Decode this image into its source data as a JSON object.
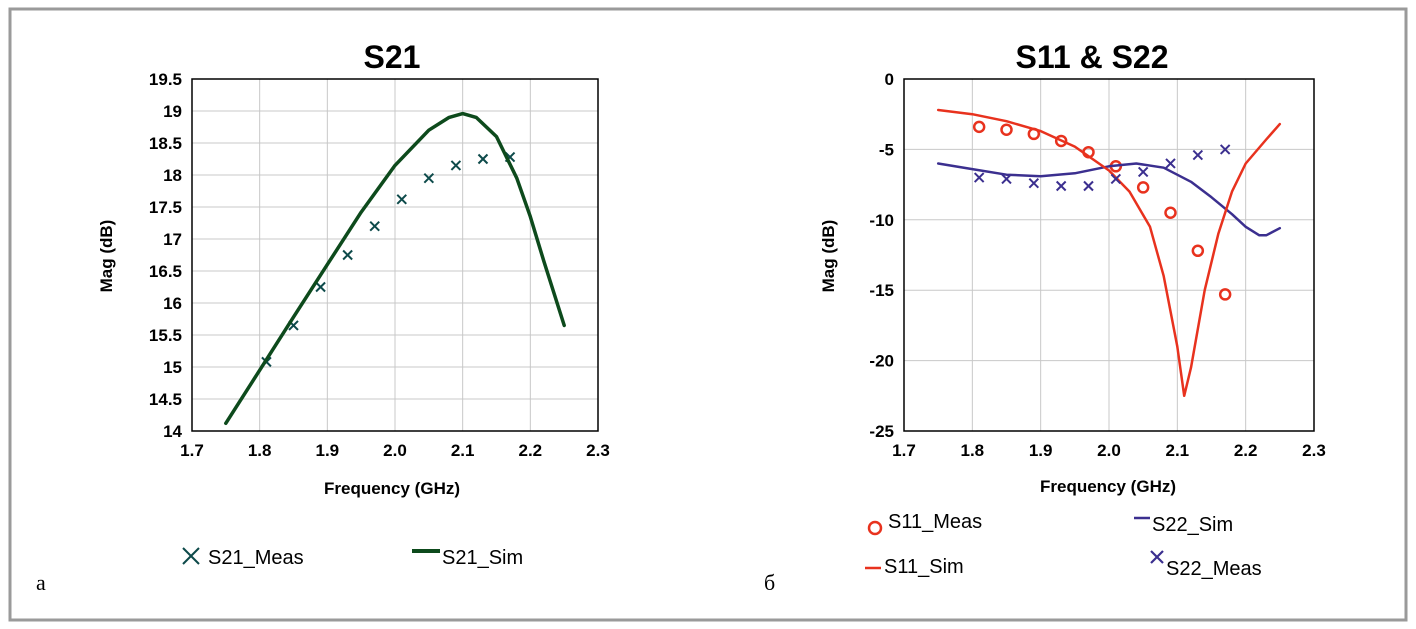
{
  "colors": {
    "border": "#9a9a9a",
    "grid": "#c8c8c8",
    "s21": "#0d4a1c",
    "s21_meas": "#0d4a4a",
    "s11": "#e8321e",
    "s22": "#3b2f8f"
  },
  "chart_data": [
    {
      "type": "line",
      "panel_label": "а",
      "title": "S21",
      "xlabel": "Frequency (GHz)",
      "ylabel": "Mag (dB)",
      "xlim": [
        1.7,
        2.3
      ],
      "ylim": [
        14,
        19.5
      ],
      "xticks": [
        "1.7",
        "1.8",
        "1.9",
        "2.0",
        "2.1",
        "2.2",
        "2.3"
      ],
      "yticks": [
        "14",
        "14.5",
        "15",
        "15.5",
        "16",
        "16.5",
        "17",
        "17.5",
        "18",
        "18.5",
        "19",
        "19.5"
      ],
      "grid": true,
      "legend_position": "bottom",
      "series": [
        {
          "name": "S21_Meas",
          "kind": "marker-x",
          "x": [
            1.81,
            1.85,
            1.89,
            1.93,
            1.97,
            2.01,
            2.05,
            2.09,
            2.13,
            2.17
          ],
          "y": [
            15.08,
            15.65,
            16.25,
            16.75,
            17.2,
            17.62,
            17.95,
            18.15,
            18.25,
            18.28
          ]
        },
        {
          "name": "S21_Sim",
          "kind": "line",
          "x": [
            1.75,
            1.8,
            1.85,
            1.9,
            1.95,
            2.0,
            2.05,
            2.08,
            2.1,
            2.12,
            2.15,
            2.18,
            2.2,
            2.22,
            2.25
          ],
          "y": [
            14.12,
            14.95,
            15.78,
            16.6,
            17.42,
            18.15,
            18.7,
            18.9,
            18.96,
            18.9,
            18.6,
            17.95,
            17.35,
            16.65,
            15.65
          ]
        }
      ]
    },
    {
      "type": "line",
      "panel_label": "б",
      "title": "S11 & S22",
      "xlabel": "Frequency (GHz)",
      "ylabel": "Mag (dB)",
      "xlim": [
        1.7,
        2.3
      ],
      "ylim": [
        -25,
        0
      ],
      "xticks": [
        "1.7",
        "1.8",
        "1.9",
        "2.0",
        "2.1",
        "2.2",
        "2.3"
      ],
      "yticks": [
        "-25",
        "-20",
        "-15",
        "-10",
        "-5",
        "0"
      ],
      "grid": true,
      "legend_position": "bottom",
      "series": [
        {
          "name": "S11_Meas",
          "kind": "marker-o",
          "x": [
            1.81,
            1.85,
            1.89,
            1.93,
            1.97,
            2.01,
            2.05,
            2.09,
            2.13,
            2.17
          ],
          "y": [
            -3.4,
            -3.6,
            -3.9,
            -4.4,
            -5.2,
            -6.2,
            -7.7,
            -9.5,
            -12.2,
            -15.3
          ]
        },
        {
          "name": "S22_Sim",
          "kind": "line",
          "x": [
            1.75,
            1.8,
            1.85,
            1.9,
            1.95,
            2.0,
            2.04,
            2.08,
            2.12,
            2.15,
            2.18,
            2.2,
            2.22,
            2.23,
            2.25
          ],
          "y": [
            -6.0,
            -6.4,
            -6.8,
            -6.9,
            -6.7,
            -6.2,
            -6.0,
            -6.3,
            -7.3,
            -8.4,
            -9.6,
            -10.5,
            -11.1,
            -11.1,
            -10.6
          ]
        },
        {
          "name": "S11_Sim",
          "kind": "line",
          "x": [
            1.75,
            1.8,
            1.85,
            1.9,
            1.95,
            2.0,
            2.03,
            2.06,
            2.08,
            2.1,
            2.11,
            2.12,
            2.14,
            2.16,
            2.18,
            2.2,
            2.23,
            2.25
          ],
          "y": [
            -2.2,
            -2.5,
            -3.0,
            -3.7,
            -4.8,
            -6.5,
            -8.0,
            -10.5,
            -14.0,
            -19.0,
            -22.5,
            -20.5,
            -15.0,
            -11.0,
            -8.0,
            -6.0,
            -4.3,
            -3.2
          ]
        },
        {
          "name": "S22_Meas",
          "kind": "marker-x",
          "x": [
            1.81,
            1.85,
            1.89,
            1.93,
            1.97,
            2.01,
            2.05,
            2.09,
            2.13,
            2.17
          ],
          "y": [
            -7.0,
            -7.1,
            -7.4,
            -7.6,
            -7.6,
            -7.1,
            -6.6,
            -6.0,
            -5.4,
            -5.0
          ]
        }
      ]
    }
  ]
}
